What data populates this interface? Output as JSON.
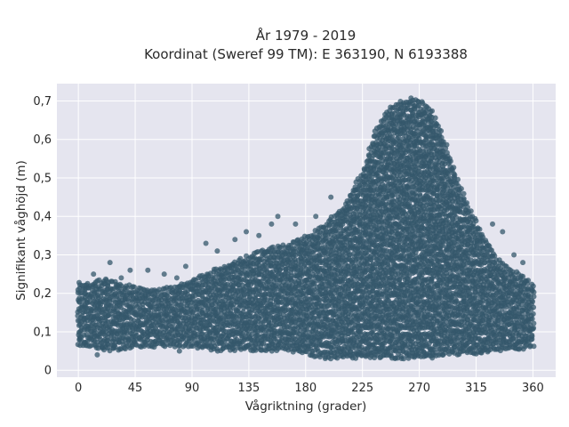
{
  "chart_data": {
    "type": "scatter",
    "title_line1": "År 1979 - 2019",
    "title_line2": "Koordinat (Sweref 99 TM): E 363190, N 6193388",
    "xlabel": "Vågriktning (grader)",
    "ylabel": "Signifikant våghöjd (m)",
    "xlim": [
      -17,
      378
    ],
    "ylim": [
      -0.018,
      0.745
    ],
    "x_ticks": [
      0,
      45,
      90,
      135,
      180,
      225,
      270,
      315,
      360
    ],
    "x_tick_labels": [
      "0",
      "45",
      "90",
      "135",
      "180",
      "225",
      "270",
      "315",
      "360"
    ],
    "y_ticks": [
      0,
      0.1,
      0.2,
      0.3,
      0.4,
      0.5,
      0.6,
      0.7
    ],
    "y_tick_labels": [
      "0",
      "0,1",
      "0,2",
      "0,3",
      "0,4",
      "0,5",
      "0,6",
      "0,7"
    ],
    "grid": true,
    "marker_color": "#34576b",
    "plot_background": "#e5e5ef",
    "envelope": {
      "x": [
        0,
        10,
        20,
        30,
        45,
        60,
        75,
        90,
        105,
        120,
        135,
        150,
        165,
        180,
        195,
        210,
        225,
        235,
        245,
        255,
        265,
        272,
        280,
        290,
        300,
        310,
        320,
        330,
        340,
        350,
        360
      ],
      "y_min": [
        0.06,
        0.06,
        0.05,
        0.05,
        0.06,
        0.06,
        0.06,
        0.06,
        0.05,
        0.05,
        0.05,
        0.05,
        0.05,
        0.04,
        0.03,
        0.03,
        0.03,
        0.03,
        0.03,
        0.03,
        0.03,
        0.03,
        0.03,
        0.04,
        0.04,
        0.04,
        0.04,
        0.05,
        0.05,
        0.05,
        0.06
      ],
      "y_max": [
        0.23,
        0.23,
        0.24,
        0.23,
        0.22,
        0.21,
        0.22,
        0.24,
        0.26,
        0.28,
        0.3,
        0.32,
        0.33,
        0.35,
        0.38,
        0.43,
        0.52,
        0.62,
        0.68,
        0.7,
        0.71,
        0.7,
        0.68,
        0.6,
        0.5,
        0.42,
        0.36,
        0.3,
        0.27,
        0.25,
        0.23
      ]
    },
    "outliers": [
      [
        12,
        0.25
      ],
      [
        25,
        0.28
      ],
      [
        34,
        0.24
      ],
      [
        41,
        0.26
      ],
      [
        55,
        0.26
      ],
      [
        68,
        0.25
      ],
      [
        78,
        0.24
      ],
      [
        85,
        0.27
      ],
      [
        101,
        0.33
      ],
      [
        110,
        0.31
      ],
      [
        124,
        0.34
      ],
      [
        133,
        0.36
      ],
      [
        143,
        0.35
      ],
      [
        153,
        0.38
      ],
      [
        158,
        0.4
      ],
      [
        172,
        0.38
      ],
      [
        188,
        0.4
      ],
      [
        200,
        0.45
      ],
      [
        328,
        0.38
      ],
      [
        336,
        0.36
      ],
      [
        345,
        0.3
      ],
      [
        352,
        0.28
      ],
      [
        15,
        0.04
      ],
      [
        80,
        0.05
      ]
    ]
  }
}
